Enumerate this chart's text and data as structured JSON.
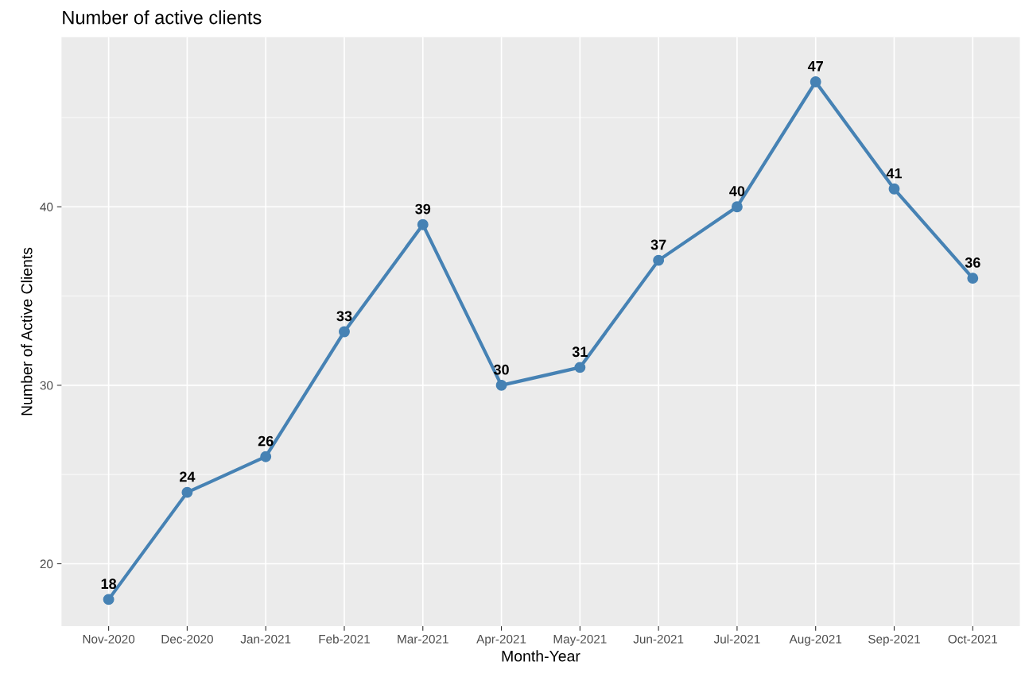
{
  "chart_data": {
    "type": "line",
    "title": "Number of active clients",
    "xlabel": "Month-Year",
    "ylabel": "Number of Active Clients",
    "categories": [
      "Nov-2020",
      "Dec-2020",
      "Jan-2021",
      "Feb-2021",
      "Mar-2021",
      "Apr-2021",
      "May-2021",
      "Jun-2021",
      "Jul-2021",
      "Aug-2021",
      "Sep-2021",
      "Oct-2021"
    ],
    "series": [
      {
        "color": "#4682b4",
        "values": [
          18,
          24,
          26,
          33,
          39,
          30,
          31,
          37,
          40,
          47,
          41,
          36
        ]
      }
    ],
    "ylim": [
      16.5,
      49.5
    ],
    "yticks": [
      20,
      30,
      40
    ],
    "grid": true,
    "marker": "circle",
    "line_style": "solid",
    "data_labels": true
  }
}
